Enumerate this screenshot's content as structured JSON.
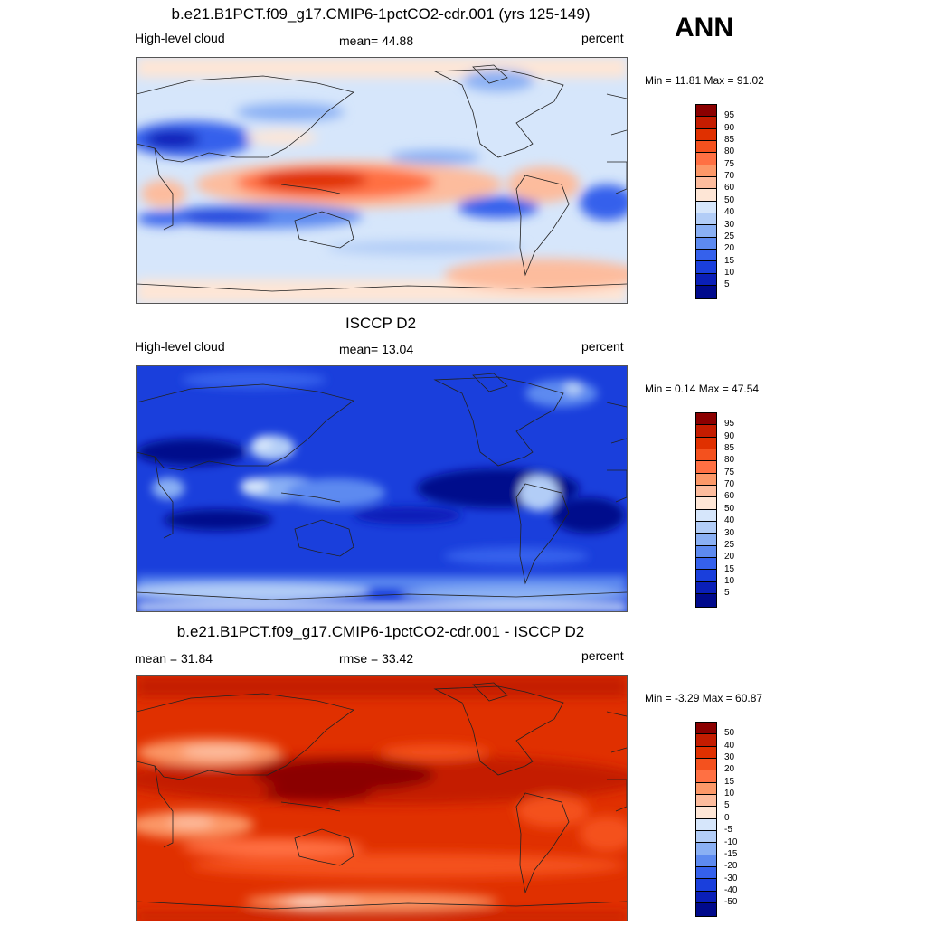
{
  "season": "ANN",
  "panels": [
    {
      "title": "b.e21.B1PCT.f09_g17.CMIP6-1pctCO2-cdr.001 (yrs 125-149)",
      "left_label": "High-level cloud",
      "center_label": "mean=  44.88",
      "right_label": "percent",
      "minmax": "Min =  11.81 Max =  91.02",
      "palette": "abs",
      "ticks": [
        "95",
        "90",
        "85",
        "80",
        "75",
        "70",
        "60",
        "50",
        "40",
        "30",
        "25",
        "20",
        "15",
        "10",
        "5"
      ],
      "colors": [
        "#8b0000",
        "#c41c00",
        "#e03000",
        "#f4511e",
        "#ff7043",
        "#fc9868",
        "#fdbc9d",
        "#fee6d6",
        "#d6e6fb",
        "#b2cdf7",
        "#8ab0f4",
        "#5d8af0",
        "#3561ec",
        "#1a3fdc",
        "#0a1fb8",
        "#000a8c"
      ]
    },
    {
      "title": "ISCCP D2",
      "left_label": "High-level cloud",
      "center_label": "mean=  13.04",
      "right_label": "percent",
      "minmax": "Min =   0.14 Max =  47.54",
      "palette": "abs",
      "ticks": [
        "95",
        "90",
        "85",
        "80",
        "75",
        "70",
        "60",
        "50",
        "40",
        "30",
        "25",
        "20",
        "15",
        "10",
        "5"
      ],
      "colors": [
        "#8b0000",
        "#c41c00",
        "#e03000",
        "#f4511e",
        "#ff7043",
        "#fc9868",
        "#fdbc9d",
        "#fee6d6",
        "#d6e6fb",
        "#b2cdf7",
        "#8ab0f4",
        "#5d8af0",
        "#3561ec",
        "#1a3fdc",
        "#0a1fb8",
        "#000a8c"
      ]
    },
    {
      "title": "b.e21.B1PCT.f09_g17.CMIP6-1pctCO2-cdr.001 - ISCCP D2",
      "left_label": "mean =  31.84",
      "center_label": "rmse =  33.42",
      "right_label": "percent",
      "minmax": "Min =  -3.29 Max =  60.87",
      "palette": "diff",
      "ticks": [
        "50",
        "40",
        "30",
        "20",
        "15",
        "10",
        "5",
        "0",
        "-5",
        "-10",
        "-15",
        "-20",
        "-30",
        "-40",
        "-50"
      ],
      "colors": [
        "#8b0000",
        "#c41c00",
        "#e03000",
        "#f4511e",
        "#ff7043",
        "#fc9868",
        "#fdbc9d",
        "#fee6d6",
        "#d6e6fb",
        "#b2cdf7",
        "#8ab0f4",
        "#5d8af0",
        "#3561ec",
        "#1a3fdc",
        "#0a1fb8",
        "#000a8c"
      ]
    }
  ]
}
